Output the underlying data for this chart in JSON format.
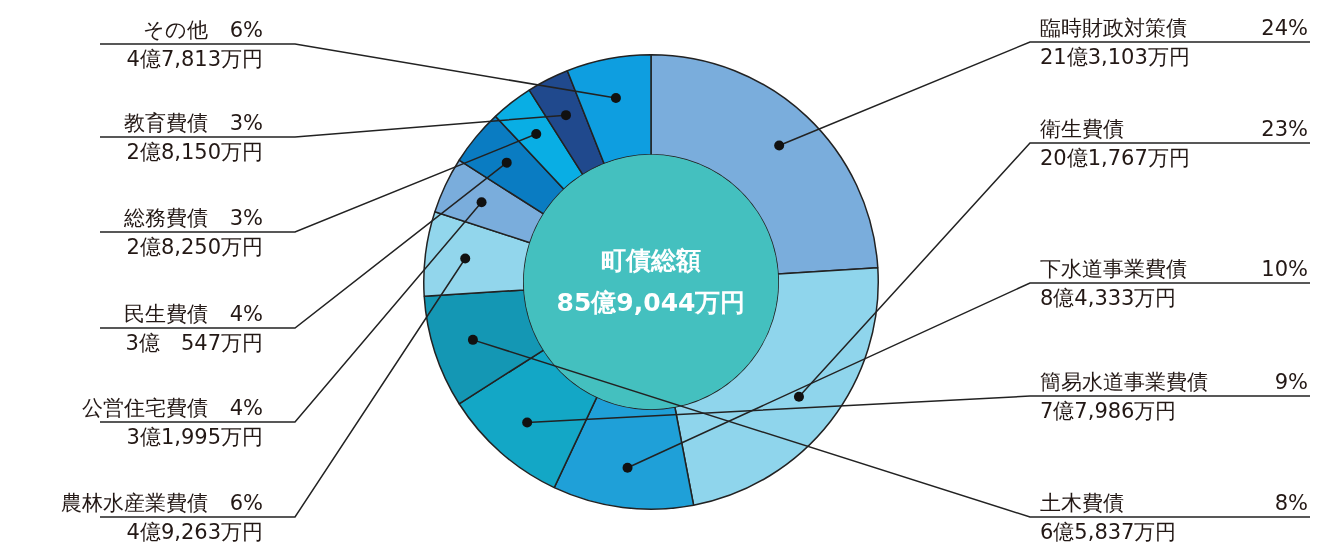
{
  "chart_data": {
    "type": "donut",
    "title": "町債総額",
    "subtitle": "85億9,044万円",
    "categories": [
      "臨時財政対策債",
      "衛生費債",
      "下水道事業費債",
      "簡易水道事業費債",
      "土木費債",
      "農林水産業費債",
      "公営住宅費債",
      "民生費債",
      "総務費債",
      "教育費債",
      "その他"
    ],
    "values": [
      24,
      23,
      10,
      9,
      8,
      6,
      4,
      4,
      3,
      3,
      6
    ],
    "colors": [
      "#7aaddc",
      "#8fd5ec",
      "#1fa0d8",
      "#13a7c6",
      "#1497b4",
      "#92d6ec",
      "#7aaddc",
      "#0a7cc2",
      "#09aee4",
      "#20498d",
      "#0e9ee0"
    ],
    "value_labels": [
      "24%",
      "23%",
      "10%",
      "9%",
      "8%",
      "6%",
      "4%",
      "4%",
      "3%",
      "3%",
      "6%"
    ],
    "annotations": [
      {
        "text": "21億3,103万円",
        "x": "臨時財政対策債"
      },
      {
        "text": "20億1,767万円",
        "x": "衛生費債"
      },
      {
        "text": "8億4,333万円",
        "x": "下水道事業費債"
      },
      {
        "text": "7億7,986万円",
        "x": "簡易水道事業費債"
      },
      {
        "text": "6億5,837万円",
        "x": "土木費債"
      },
      {
        "text": "4億9,263万円",
        "x": "農林水産業費債"
      },
      {
        "text": "3億1,995万円",
        "x": "公営住宅費債"
      },
      {
        "text": "3億　547万円",
        "x": "民生費債"
      },
      {
        "text": "2億8,250万円",
        "x": "総務費債"
      },
      {
        "text": "2億8,150万円",
        "x": "教育費債"
      },
      {
        "text": "4億7,813万円",
        "x": "その他"
      }
    ],
    "legend": false
  }
}
